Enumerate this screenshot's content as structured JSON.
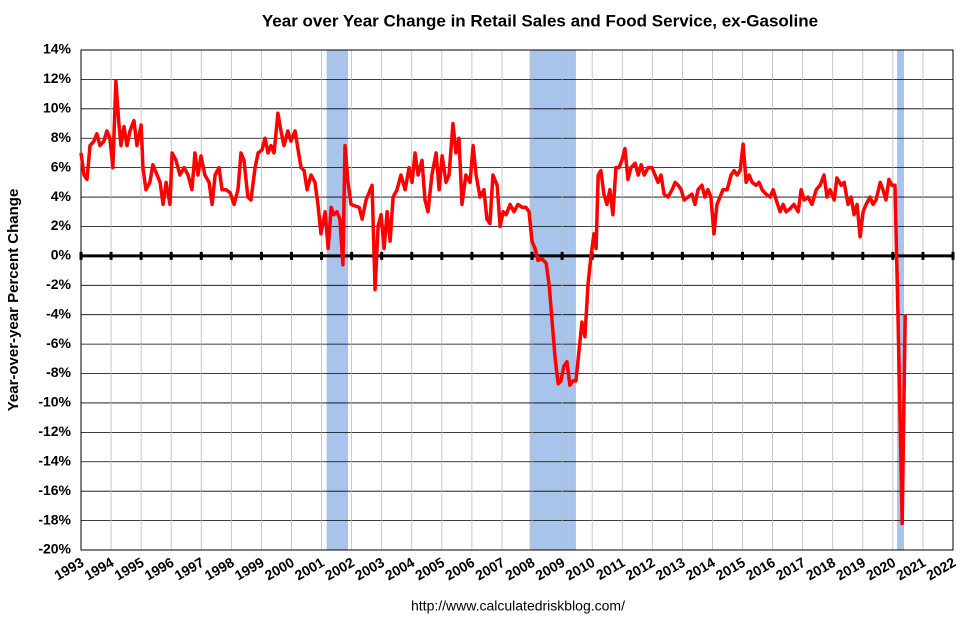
{
  "chart_data": {
    "type": "line",
    "title": "Year over Year Change in Retail Sales and Food Service, ex-Gasoline",
    "y_label": "Year-over-year Percent Change",
    "source": "http://www.calculatedriskblog.com/",
    "color": "#ff0000",
    "recession_color": "#a9c4eb",
    "grid": true,
    "xlim": [
      1993,
      2022
    ],
    "ylim": [
      -20,
      14
    ],
    "xticks": [
      1993,
      1994,
      1995,
      1996,
      1997,
      1998,
      1999,
      2000,
      2001,
      2002,
      2003,
      2004,
      2005,
      2006,
      2007,
      2008,
      2009,
      2010,
      2011,
      2012,
      2013,
      2014,
      2015,
      2016,
      2017,
      2018,
      2019,
      2020,
      2021,
      2022
    ],
    "yticks": [
      {
        "value": -20,
        "label": "-20%"
      },
      {
        "value": -18,
        "label": "-18%"
      },
      {
        "value": -16,
        "label": "-16%"
      },
      {
        "value": -14,
        "label": "-14%"
      },
      {
        "value": -12,
        "label": "-12%"
      },
      {
        "value": -10,
        "label": "-10%"
      },
      {
        "value": -8,
        "label": "-8%"
      },
      {
        "value": -6,
        "label": "-6%"
      },
      {
        "value": -4,
        "label": "-4%"
      },
      {
        "value": -2,
        "label": "-2%"
      },
      {
        "value": 0,
        "label": "0%"
      },
      {
        "value": 2,
        "label": "2%"
      },
      {
        "value": 4,
        "label": "4%"
      },
      {
        "value": 6,
        "label": "6%"
      },
      {
        "value": 8,
        "label": "8%"
      },
      {
        "value": 10,
        "label": "10%"
      },
      {
        "value": 12,
        "label": "12%"
      },
      {
        "value": 14,
        "label": "14%"
      }
    ],
    "recessions": [
      [
        2001.17,
        2001.88
      ],
      [
        2007.92,
        2009.46
      ],
      [
        2020.14,
        2020.37
      ]
    ],
    "x": [
      1993.0,
      1993.1,
      1993.2,
      1993.3,
      1993.43,
      1993.53,
      1993.63,
      1993.76,
      1993.86,
      1993.96,
      1994.06,
      1994.16,
      1994.26,
      1994.33,
      1994.43,
      1994.53,
      1994.63,
      1994.76,
      1994.86,
      1995.0,
      1995.06,
      1995.16,
      1995.29,
      1995.39,
      1995.53,
      1995.63,
      1995.73,
      1995.83,
      1995.96,
      1996.03,
      1996.16,
      1996.29,
      1996.43,
      1996.56,
      1996.69,
      1996.79,
      1996.89,
      1996.99,
      1997.12,
      1997.26,
      1997.36,
      1997.46,
      1997.59,
      1997.69,
      1997.82,
      1997.96,
      1998.09,
      1998.22,
      1998.32,
      1998.42,
      1998.55,
      1998.65,
      1998.79,
      1998.89,
      1999.02,
      1999.12,
      1999.22,
      1999.32,
      1999.42,
      1999.55,
      1999.65,
      1999.75,
      1999.88,
      1999.98,
      2000.12,
      2000.22,
      2000.32,
      2000.42,
      2000.52,
      2000.65,
      2000.78,
      2000.88,
      2000.98,
      2001.12,
      2001.22,
      2001.32,
      2001.41,
      2001.51,
      2001.61,
      2001.71,
      2001.78,
      2001.88,
      2001.98,
      2002.11,
      2002.25,
      2002.35,
      2002.48,
      2002.68,
      2002.78,
      2002.88,
      2002.98,
      2003.08,
      2003.18,
      2003.28,
      2003.38,
      2003.51,
      2003.64,
      2003.78,
      2003.91,
      2004.01,
      2004.11,
      2004.21,
      2004.34,
      2004.44,
      2004.54,
      2004.67,
      2004.81,
      2004.91,
      2005.01,
      2005.14,
      2005.24,
      2005.37,
      2005.47,
      2005.57,
      2005.67,
      2005.8,
      2005.94,
      2006.04,
      2006.14,
      2006.27,
      2006.4,
      2006.5,
      2006.6,
      2006.7,
      2006.84,
      2006.94,
      2007.04,
      2007.14,
      2007.27,
      2007.4,
      2007.53,
      2007.67,
      2007.8,
      2007.9,
      2008.0,
      2008.1,
      2008.2,
      2008.33,
      2008.47,
      2008.57,
      2008.67,
      2008.77,
      2008.87,
      2008.96,
      2009.06,
      2009.16,
      2009.26,
      2009.36,
      2009.46,
      2009.56,
      2009.66,
      2009.76,
      2009.86,
      2009.96,
      2010.06,
      2010.13,
      2010.2,
      2010.29,
      2010.39,
      2010.49,
      2010.59,
      2010.69,
      2010.79,
      2010.89,
      2010.99,
      2011.09,
      2011.19,
      2011.29,
      2011.43,
      2011.53,
      2011.63,
      2011.73,
      2011.86,
      2011.99,
      2012.09,
      2012.19,
      2012.29,
      2012.39,
      2012.52,
      2012.66,
      2012.76,
      2012.86,
      2012.96,
      2013.06,
      2013.19,
      2013.32,
      2013.42,
      2013.52,
      2013.65,
      2013.75,
      2013.85,
      2013.95,
      2014.05,
      2014.15,
      2014.25,
      2014.35,
      2014.49,
      2014.62,
      2014.72,
      2014.82,
      2014.92,
      2015.02,
      2015.12,
      2015.22,
      2015.32,
      2015.45,
      2015.55,
      2015.65,
      2015.78,
      2015.92,
      2016.02,
      2016.12,
      2016.25,
      2016.35,
      2016.45,
      2016.58,
      2016.71,
      2016.85,
      2016.95,
      2017.05,
      2017.18,
      2017.31,
      2017.45,
      2017.58,
      2017.71,
      2017.81,
      2017.91,
      2018.05,
      2018.14,
      2018.28,
      2018.38,
      2018.51,
      2018.61,
      2018.71,
      2018.81,
      2018.91,
      2019.01,
      2019.11,
      2019.24,
      2019.34,
      2019.44,
      2019.58,
      2019.67,
      2019.77,
      2019.87,
      2019.97,
      2020.07,
      2020.17,
      2020.31,
      2020.41
    ],
    "values": [
      7.0,
      5.5,
      5.2,
      7.5,
      7.8,
      8.3,
      7.5,
      7.8,
      8.5,
      8.0,
      6.0,
      11.9,
      9.0,
      7.5,
      8.8,
      7.5,
      8.5,
      9.2,
      7.5,
      8.9,
      6.0,
      4.5,
      5.0,
      6.2,
      5.5,
      5.0,
      3.5,
      5.0,
      3.5,
      7.0,
      6.5,
      5.5,
      6.0,
      5.5,
      4.5,
      7.0,
      5.5,
      6.8,
      5.5,
      5.0,
      3.5,
      5.5,
      6.0,
      4.5,
      4.5,
      4.3,
      3.5,
      4.5,
      7.0,
      6.5,
      4.0,
      3.8,
      6.0,
      7.0,
      7.2,
      8.0,
      7.0,
      7.5,
      7.0,
      9.7,
      8.5,
      7.5,
      8.5,
      7.8,
      8.5,
      7.2,
      6.0,
      5.8,
      4.5,
      5.5,
      5.0,
      3.5,
      1.5,
      3.0,
      0.5,
      3.3,
      2.8,
      3.0,
      2.5,
      -0.6,
      7.5,
      5.0,
      3.5,
      3.4,
      3.3,
      2.5,
      3.8,
      4.8,
      -2.3,
      2.0,
      2.8,
      0.5,
      3.0,
      1.0,
      4.0,
      4.5,
      5.5,
      4.5,
      6.0,
      5.0,
      7.0,
      5.5,
      6.5,
      3.8,
      3.0,
      5.5,
      7.0,
      4.5,
      6.8,
      5.0,
      5.5,
      9.0,
      7.0,
      8.0,
      3.5,
      5.5,
      5.0,
      7.5,
      5.5,
      4.0,
      4.5,
      2.5,
      2.2,
      5.5,
      4.8,
      2.0,
      3.0,
      2.8,
      3.5,
      3.0,
      3.5,
      3.3,
      3.3,
      3.0,
      1.0,
      0.5,
      -0.3,
      -0.2,
      -0.5,
      -2.0,
      -4.5,
      -7.0,
      -8.7,
      -8.5,
      -7.5,
      -7.2,
      -8.8,
      -8.5,
      -8.5,
      -6.5,
      -4.5,
      -5.5,
      -2.0,
      0.0,
      1.5,
      0.5,
      5.5,
      5.8,
      4.2,
      3.5,
      4.5,
      2.8,
      6.0,
      6.0,
      6.5,
      7.3,
      5.2,
      6.0,
      6.3,
      5.5,
      6.2,
      5.5,
      6.0,
      6.0,
      5.5,
      5.0,
      5.5,
      4.2,
      4.0,
      4.5,
      5.0,
      4.8,
      4.5,
      3.8,
      4.0,
      4.2,
      3.5,
      4.5,
      4.8,
      4.0,
      4.5,
      4.0,
      1.5,
      3.5,
      4.0,
      4.5,
      4.5,
      5.5,
      5.8,
      5.5,
      5.8,
      7.6,
      5.0,
      5.5,
      5.0,
      4.8,
      5.0,
      4.5,
      4.2,
      4.0,
      4.5,
      3.8,
      3.0,
      3.5,
      3.0,
      3.2,
      3.5,
      3.0,
      4.5,
      3.8,
      4.0,
      3.5,
      4.5,
      4.8,
      5.5,
      4.0,
      4.5,
      3.8,
      5.3,
      4.8,
      5.0,
      3.5,
      4.0,
      2.8,
      3.5,
      1.3,
      3.0,
      3.5,
      4.0,
      3.5,
      3.8,
      5.0,
      4.5,
      3.8,
      5.2,
      4.8,
      4.8,
      -4.0,
      -18.2,
      -4.0
    ]
  }
}
